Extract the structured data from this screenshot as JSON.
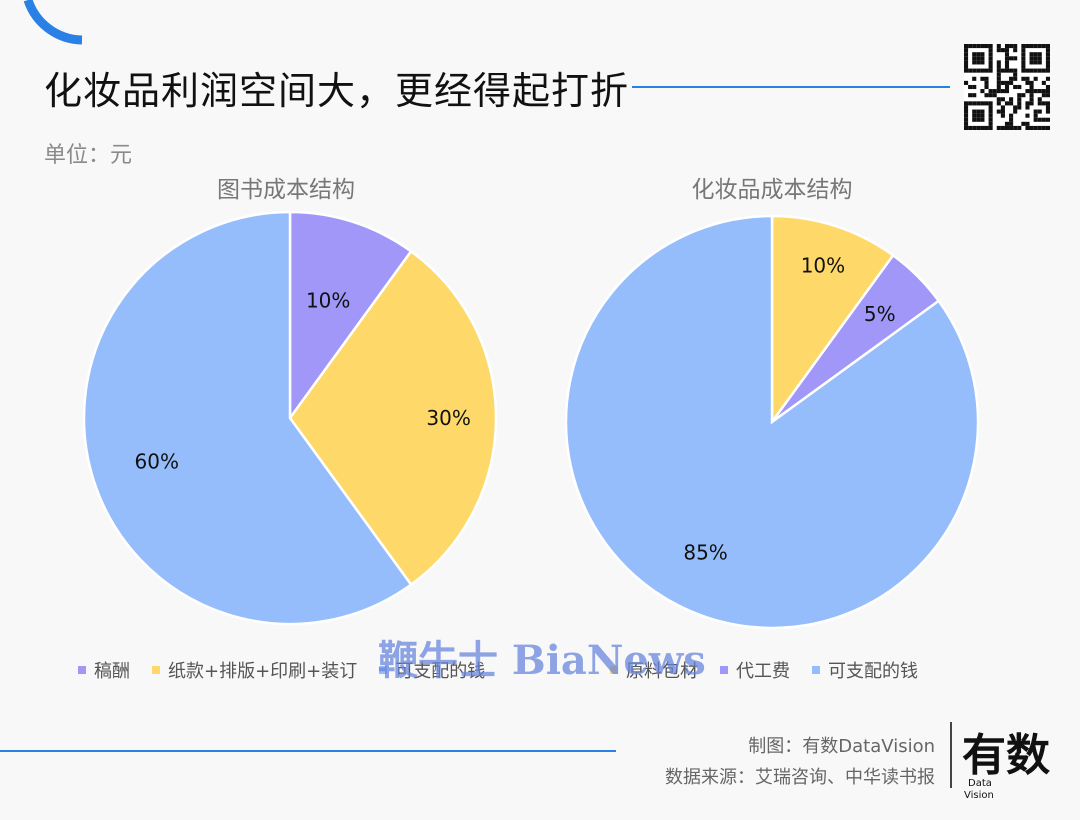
{
  "header": {
    "title": "化妆品利润空间大，更经得起打折",
    "unit": "单位：元",
    "accent_color": "#2b80e5"
  },
  "chart_data": [
    {
      "type": "pie",
      "title": "图书成本结构",
      "categories": [
        "稿酬",
        "纸款+排版+印刷+装订",
        "可支配的钱"
      ],
      "values": [
        10,
        30,
        60
      ],
      "data_labels": [
        "10%",
        "30%",
        "60%"
      ],
      "colors": [
        "#a097f8",
        "#fed969",
        "#95bdfc"
      ],
      "legend_position": "bottom"
    },
    {
      "type": "pie",
      "title": "化妆品成本结构",
      "categories": [
        "原料包材",
        "代工费",
        "可支配的钱"
      ],
      "values": [
        10,
        5,
        85
      ],
      "data_labels": [
        "10%",
        "5%",
        "85%"
      ],
      "colors": [
        "#fed969",
        "#a097f8",
        "#95bdfc"
      ],
      "legend_position": "bottom"
    }
  ],
  "watermark": "鞭牛士 BiaNews",
  "footer": {
    "credit_line1": "制图：有数DataVision",
    "credit_line2": "数据来源：艾瑞咨询、中华读书报",
    "logo_main": "有数",
    "logo_sub1": "Data",
    "logo_sub2": "Vision"
  },
  "icons": {
    "qr": "qr-code-icon",
    "corner": "corner-arc-icon"
  }
}
